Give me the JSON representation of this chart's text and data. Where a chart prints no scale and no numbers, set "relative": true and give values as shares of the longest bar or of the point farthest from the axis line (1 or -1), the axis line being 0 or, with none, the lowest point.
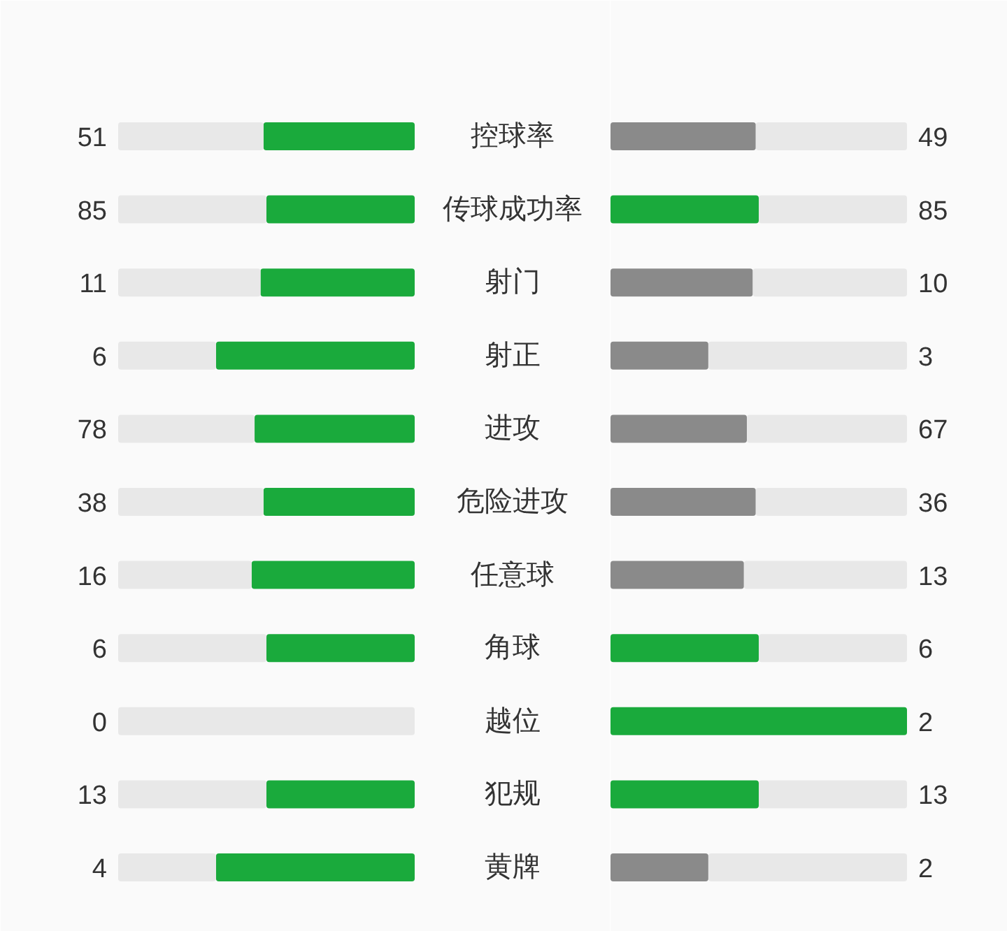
{
  "chart_data": [
    {
      "type": "bar",
      "orientation": "horizontal",
      "stacked": true,
      "relative": true,
      "tick_labels": "y",
      "categories": [
        "控球率",
        "传球成功率",
        "射门",
        "射正",
        "进攻",
        "危险进攻",
        "任意球",
        "角球",
        "越位",
        "犯规",
        "黄牌"
      ],
      "annotations": [
        "51",
        "85",
        "11",
        "6",
        "78",
        "38",
        "16",
        "6",
        "0",
        "13",
        "4"
      ],
      "series": [
        {
          "colors": [
            "#1aaa3c",
            "#1aaa3c",
            "#1aaa3c",
            "#1aaa3c",
            "#1aaa3c",
            "#1aaa3c",
            "#1aaa3c",
            "#1aaa3c",
            "#8a8a8a",
            "#1aaa3c",
            "#1aaa3c"
          ],
          "values": [
            -0.51,
            -0.5,
            -0.52,
            -0.67,
            -0.54,
            -0.51,
            -0.55,
            -0.5,
            0,
            -0.5,
            -0.67
          ]
        },
        {
          "color": "#e8e8e8",
          "values": [
            -0.49,
            -0.5,
            -0.48,
            -0.33,
            -0.46,
            -0.49,
            -0.45,
            -0.5,
            -1,
            -0.5,
            -0.33
          ]
        }
      ]
    },
    {
      "type": "bar",
      "orientation": "horizontal",
      "stacked": true,
      "relative": true,
      "categories": [
        null,
        null,
        null,
        null,
        null,
        null,
        null,
        null,
        null,
        null,
        null
      ],
      "annotations": [
        "49",
        "85",
        "10",
        "3",
        "67",
        "36",
        "13",
        "6",
        "2",
        "13",
        "2"
      ],
      "series": [
        {
          "colors": [
            "#8a8a8a",
            "#1aaa3c",
            "#8a8a8a",
            "#8a8a8a",
            "#8a8a8a",
            "#8a8a8a",
            "#8a8a8a",
            "#1aaa3c",
            "#1aaa3c",
            "#1aaa3c",
            "#8a8a8a"
          ],
          "values": [
            0.49,
            0.5,
            0.48,
            0.33,
            0.46,
            0.49,
            0.45,
            0.5,
            1,
            0.5,
            0.33
          ]
        },
        {
          "color": "#e8e8e8",
          "values": [
            0.51,
            0.5,
            0.52,
            0.67,
            0.54,
            0.51,
            0.55,
            0.5,
            0,
            0.5,
            0.67
          ]
        }
      ]
    }
  ]
}
